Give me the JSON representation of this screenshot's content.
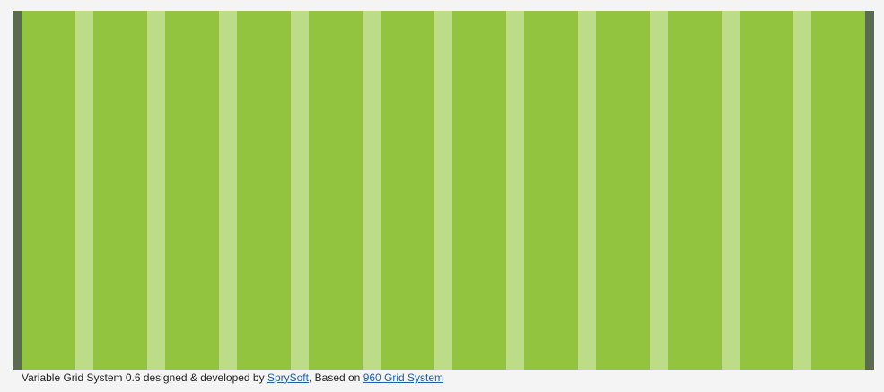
{
  "grid": {
    "columns": 12,
    "colors": {
      "margin": "#5a6b4f",
      "column": "#92c43f",
      "gutter": "#bcdc87"
    }
  },
  "footer": {
    "prefix": "Variable Grid System 0.6 designed & developed by ",
    "link1": "SprySoft",
    "middle": ", Based on ",
    "link2": "960 Grid System",
    "link_color": "#1f5fa8"
  }
}
